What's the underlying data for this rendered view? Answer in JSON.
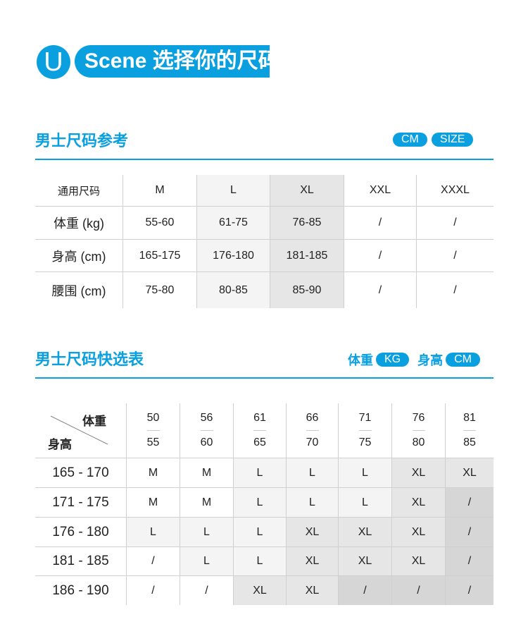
{
  "header": {
    "logo_letter": "U",
    "title": "Scene 选择你的尺码"
  },
  "size_ref": {
    "title": "男士尺码参考",
    "units": [
      "CM",
      "SIZE"
    ],
    "columns": [
      "通用尺码",
      "M",
      "L",
      "XL",
      "XXL",
      "XXXL"
    ],
    "rows": [
      [
        "体重 (kg)",
        "55-60",
        "61-75",
        "76-85",
        "/",
        "/"
      ],
      [
        "身高 (cm)",
        "165-175",
        "176-180",
        "181-185",
        "/",
        "/"
      ],
      [
        "腰围 (cm)",
        "75-80",
        "80-85",
        "85-90",
        "/",
        "/"
      ]
    ]
  },
  "quick": {
    "title": "男士尺码快选表",
    "unit_weight_label": "体重",
    "unit_weight": "KG",
    "unit_height_label": "身高",
    "unit_height": "CM",
    "corner_top": "体重",
    "corner_bottom": "身高",
    "weights": [
      [
        "50",
        "55"
      ],
      [
        "56",
        "60"
      ],
      [
        "61",
        "65"
      ],
      [
        "66",
        "70"
      ],
      [
        "71",
        "75"
      ],
      [
        "76",
        "80"
      ],
      [
        "81",
        "85"
      ]
    ],
    "rows": [
      {
        "height": "165 - 170",
        "sizes": [
          "M",
          "M",
          "L",
          "L",
          "L",
          "XL",
          "XL"
        ],
        "shades": [
          "w",
          "w",
          "l",
          "l",
          "l",
          "m",
          "m"
        ]
      },
      {
        "height": "171 - 175",
        "sizes": [
          "M",
          "M",
          "L",
          "L",
          "L",
          "XL",
          "/"
        ],
        "shades": [
          "w",
          "w",
          "l",
          "l",
          "l",
          "m",
          "d"
        ]
      },
      {
        "height": "176 - 180",
        "sizes": [
          "L",
          "L",
          "L",
          "XL",
          "XL",
          "XL",
          "/"
        ],
        "shades": [
          "l",
          "l",
          "l",
          "m",
          "m",
          "m",
          "d"
        ]
      },
      {
        "height": "181 - 185",
        "sizes": [
          "/",
          "L",
          "L",
          "XL",
          "XL",
          "XL",
          "/"
        ],
        "shades": [
          "w",
          "l",
          "l",
          "m",
          "m",
          "m",
          "d"
        ]
      },
      {
        "height": "186 - 190",
        "sizes": [
          "/",
          "/",
          "XL",
          "XL",
          "/",
          "/",
          "/"
        ],
        "shades": [
          "w",
          "w",
          "m",
          "m",
          "d",
          "d",
          "d"
        ]
      }
    ]
  },
  "colors": {
    "accent": "#0aa0e0"
  }
}
